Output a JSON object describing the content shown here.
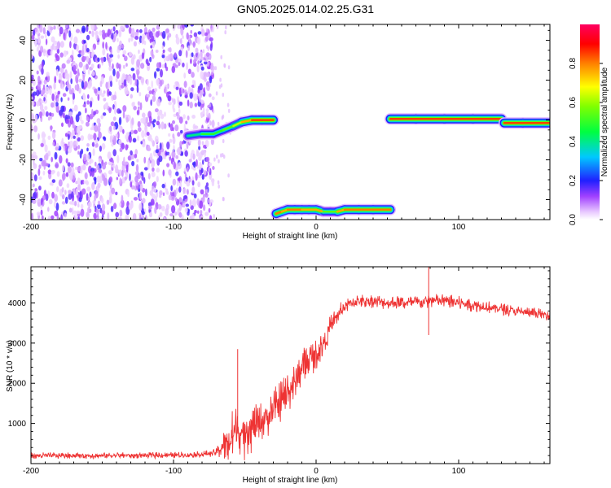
{
  "title": "GN05.2025.014.02.25.G31",
  "colors": {
    "snr_line": "#ee3333",
    "spectrogram_noise": "#8a2be2",
    "track_core": "#ff2020"
  },
  "chart_data": [
    {
      "type": "heatmap",
      "xlabel": "Height of straight line (km)",
      "ylabel": "Frequency (Hz)",
      "xlim": [
        -200,
        164
      ],
      "ylim": [
        -50,
        48
      ],
      "xticks": [
        -200,
        -100,
        0,
        100
      ],
      "yticks": [
        -40,
        -20,
        0,
        20,
        40
      ],
      "colorbar": {
        "label": "Normalized spectral amplitude",
        "range": [
          0,
          1
        ],
        "ticks": [
          "0.0",
          "0.2",
          "0.4",
          "0.6",
          "0.8"
        ],
        "tick_values": [
          0.0,
          0.2,
          0.4,
          0.6,
          0.8
        ]
      },
      "noise_region_x": [
        -200,
        -72
      ],
      "tracks": [
        {
          "x": [
            -90,
            -80,
            -72,
            -65,
            -58,
            -52,
            -45,
            -38,
            -30
          ],
          "y": [
            -8,
            -7,
            -7,
            -5,
            -3,
            -1,
            0,
            0,
            0
          ],
          "amp": [
            0.35,
            0.45,
            0.55,
            0.5,
            0.6,
            0.7,
            0.85,
            0.95,
            0.9
          ]
        },
        {
          "x": [
            -28,
            -24,
            -20,
            -15,
            -10,
            -5,
            0,
            5,
            10,
            15,
            20,
            30,
            40,
            52
          ],
          "y": [
            -47,
            -46,
            -45,
            -45,
            -45,
            -45,
            -45,
            -46,
            -46,
            -46,
            -45,
            -45,
            -45,
            -45
          ],
          "amp": [
            0.9,
            0.85,
            0.75,
            0.9,
            0.85,
            0.7,
            0.85,
            0.6,
            0.55,
            0.6,
            0.85,
            0.9,
            0.9,
            0.9
          ]
        },
        {
          "x": [
            52,
            70,
            90,
            110,
            130
          ],
          "y": [
            0.5,
            0.5,
            0.5,
            0.5,
            0.5
          ],
          "amp": [
            0.95,
            0.95,
            0.95,
            0.95,
            0.95
          ]
        },
        {
          "x": [
            132,
            145,
            164
          ],
          "y": [
            -1.5,
            -1.5,
            -1.5
          ],
          "amp": [
            0.95,
            0.95,
            0.95
          ]
        }
      ]
    },
    {
      "type": "line",
      "xlabel": "Height of straight line (km)",
      "ylabel": "SNR (10 * v/v)",
      "xlim": [
        -200,
        164
      ],
      "ylim": [
        0,
        4900
      ],
      "xticks": [
        -200,
        -100,
        0,
        100
      ],
      "yticks": [
        1000,
        2000,
        3000,
        4000
      ],
      "series": [
        {
          "x": [
            -200,
            -150,
            -100,
            -80,
            -70,
            -65,
            -60,
            -55,
            -50,
            -45,
            -40,
            -35,
            -30,
            -25,
            -20,
            -15,
            -10,
            -5,
            0,
            5,
            10,
            15,
            20,
            25,
            30,
            40,
            50,
            60,
            70,
            80,
            90,
            100,
            110,
            120,
            130,
            140,
            150,
            164
          ],
          "y": [
            200,
            200,
            210,
            230,
            280,
            450,
            600,
            900,
            500,
            850,
            1000,
            1150,
            1300,
            1500,
            1800,
            2000,
            2400,
            2600,
            2700,
            3000,
            3400,
            3700,
            3900,
            4000,
            4050,
            4050,
            4000,
            4000,
            4000,
            4050,
            4050,
            4000,
            3950,
            3900,
            3850,
            3800,
            3750,
            3700
          ],
          "noise": [
            80,
            80,
            80,
            80,
            100,
            400,
            700,
            600,
            500,
            600,
            500,
            500,
            550,
            600,
            600,
            500,
            450,
            450,
            400,
            350,
            300,
            250,
            200,
            200,
            180,
            180,
            180,
            180,
            180,
            180,
            180,
            180,
            170,
            160,
            150,
            140,
            140,
            140
          ]
        }
      ],
      "spikes": [
        {
          "x": -55,
          "y": 2850
        },
        {
          "x": 79,
          "y": 4900
        },
        {
          "x": 79,
          "y": 3200
        }
      ]
    }
  ]
}
